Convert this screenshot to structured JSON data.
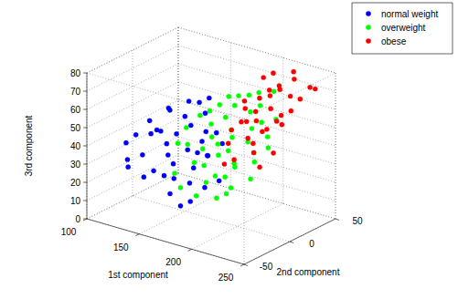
{
  "chart_data": {
    "type": "scatter",
    "x_label": "1st component",
    "y_label": "2nd component",
    "z_label": "3rd component",
    "xlim": [
      100,
      250
    ],
    "xticks": [
      100,
      150,
      200,
      250
    ],
    "ylim": [
      -50,
      50
    ],
    "yticks": [
      -50,
      0,
      50
    ],
    "zlim": [
      0,
      80
    ],
    "zticks": [
      0,
      10,
      20,
      30,
      40,
      50,
      60,
      70,
      80
    ],
    "grid": true,
    "legend": "upper right",
    "marker": "circle",
    "series": [
      {
        "name": "normal weight",
        "color": "#0000ff",
        "x": [
          120,
          125,
          130,
          135,
          140,
          140,
          145,
          150,
          150,
          155,
          155,
          160,
          160,
          165,
          165,
          170,
          170,
          175,
          175,
          180,
          180,
          185,
          185,
          190,
          190,
          195,
          130,
          135,
          145,
          150,
          160,
          170,
          180,
          125,
          140,
          155,
          165,
          175,
          185,
          200
        ],
        "y": [
          -30,
          -10,
          -40,
          -20,
          -5,
          -35,
          -25,
          0,
          -45,
          -15,
          10,
          -30,
          -5,
          -40,
          5,
          -20,
          -35,
          -10,
          -45,
          -25,
          0,
          -35,
          -15,
          -40,
          -5,
          -30,
          5,
          -45,
          10,
          -20,
          15,
          0,
          -10,
          -25,
          -15,
          -40,
          -30,
          -15,
          -45,
          -20
        ],
        "z": [
          40,
          48,
          35,
          45,
          55,
          38,
          50,
          52,
          30,
          47,
          58,
          40,
          50,
          32,
          55,
          42,
          30,
          45,
          25,
          35,
          48,
          30,
          40,
          22,
          45,
          28,
          52,
          33,
          57,
          42,
          60,
          47,
          38,
          44,
          46,
          33,
          36,
          40,
          20,
          30
        ]
      },
      {
        "name": "overweight",
        "color": "#00ff00",
        "x": [
          160,
          165,
          170,
          175,
          180,
          185,
          190,
          195,
          200,
          205,
          210,
          215,
          220,
          170,
          180,
          190,
          200,
          210,
          220,
          225,
          175,
          185,
          195,
          205,
          215,
          160,
          170,
          180,
          190,
          200,
          210,
          220,
          230,
          195,
          205,
          185,
          175,
          215,
          225,
          200,
          190,
          180,
          210,
          220,
          165
        ],
        "y": [
          -10,
          10,
          -20,
          0,
          20,
          -30,
          5,
          -15,
          25,
          -40,
          0,
          -20,
          10,
          25,
          -5,
          -25,
          -10,
          15,
          -35,
          -10,
          -40,
          30,
          20,
          -30,
          25,
          5,
          15,
          -15,
          35,
          -45,
          -25,
          -5,
          -20,
          0,
          10,
          -45,
          30,
          -40,
          5,
          40,
          -10,
          10,
          -15,
          -30,
          -25
        ],
        "z": [
          50,
          55,
          45,
          52,
          58,
          40,
          50,
          42,
          60,
          35,
          48,
          40,
          50,
          60,
          47,
          38,
          44,
          55,
          30,
          42,
          35,
          62,
          57,
          36,
          55,
          53,
          58,
          43,
          63,
          28,
          35,
          45,
          36,
          48,
          52,
          30,
          60,
          28,
          46,
          64,
          46,
          54,
          40,
          32,
          46
        ]
      },
      {
        "name": "obese",
        "color": "#ff0000",
        "x": [
          190,
          195,
          200,
          205,
          210,
          215,
          220,
          225,
          230,
          200,
          210,
          220,
          195,
          205,
          215,
          225,
          185,
          190,
          210,
          220,
          230,
          200,
          215,
          205,
          195,
          225,
          210,
          235,
          200,
          215,
          190,
          220,
          205,
          210,
          230
        ],
        "y": [
          20,
          30,
          10,
          40,
          25,
          15,
          35,
          20,
          45,
          -10,
          0,
          -5,
          45,
          30,
          10,
          40,
          25,
          5,
          35,
          20,
          -10,
          20,
          45,
          -20,
          10,
          30,
          -15,
          45,
          35,
          0,
          40,
          25,
          15,
          50,
          5
        ],
        "z": [
          58,
          62,
          55,
          68,
          60,
          52,
          66,
          55,
          70,
          48,
          50,
          45,
          72,
          65,
          52,
          64,
          60,
          50,
          68,
          56,
          40,
          58,
          72,
          40,
          54,
          60,
          42,
          70,
          66,
          48,
          70,
          58,
          55,
          74,
          44
        ]
      }
    ]
  }
}
